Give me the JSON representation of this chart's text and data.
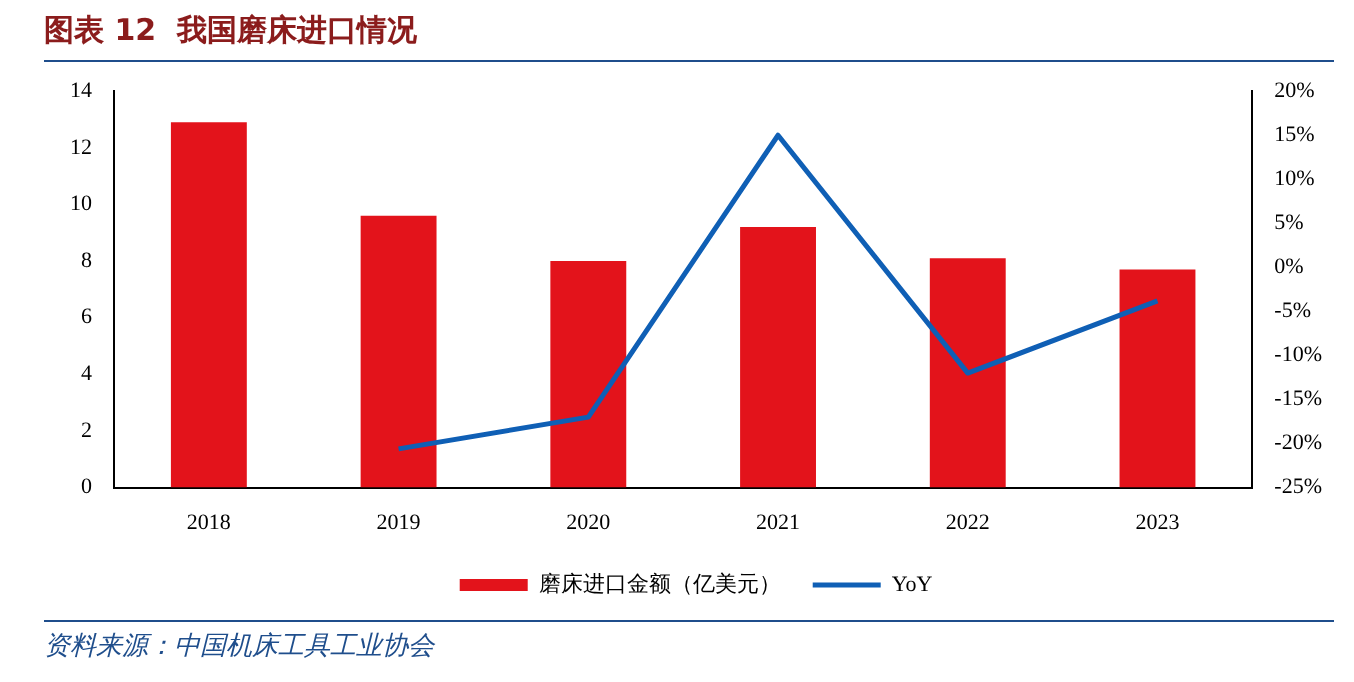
{
  "chart_data": {
    "type": "bar",
    "title": "图表 12  我国磨床进口情况",
    "categories": [
      "2018",
      "2019",
      "2020",
      "2021",
      "2022",
      "2023"
    ],
    "series": [
      {
        "name": "磨床进口金额（亿美元）",
        "color": "#e3131b",
        "values": [
          12.9,
          9.6,
          8.0,
          9.2,
          8.1,
          7.7
        ]
      },
      {
        "name": "YoY",
        "type": "line",
        "axis": "y2",
        "color": "#0f5fb5",
        "values": [
          null,
          -20.6,
          -17.0,
          15.0,
          -12.0,
          -3.8
        ]
      }
    ],
    "ylim": [
      0,
      14
    ],
    "yticks": [
      0,
      2,
      4,
      6,
      8,
      10,
      12,
      14
    ],
    "y2lim": [
      -25,
      20
    ],
    "y2ticks": [
      {
        "value": -25,
        "label": "-25%"
      },
      {
        "value": -20,
        "label": "-20%"
      },
      {
        "value": -15,
        "label": "-15%"
      },
      {
        "value": -10,
        "label": "-10%"
      },
      {
        "value": -5,
        "label": "-5%"
      },
      {
        "value": 0,
        "label": "0%"
      },
      {
        "value": 5,
        "label": "5%"
      },
      {
        "value": 10,
        "label": "10%"
      },
      {
        "value": 15,
        "label": "15%"
      },
      {
        "value": 20,
        "label": "20%"
      }
    ],
    "grid": false,
    "legend": "bottom",
    "annotations": [
      "资料来源：中国机床工具工业协会"
    ]
  }
}
